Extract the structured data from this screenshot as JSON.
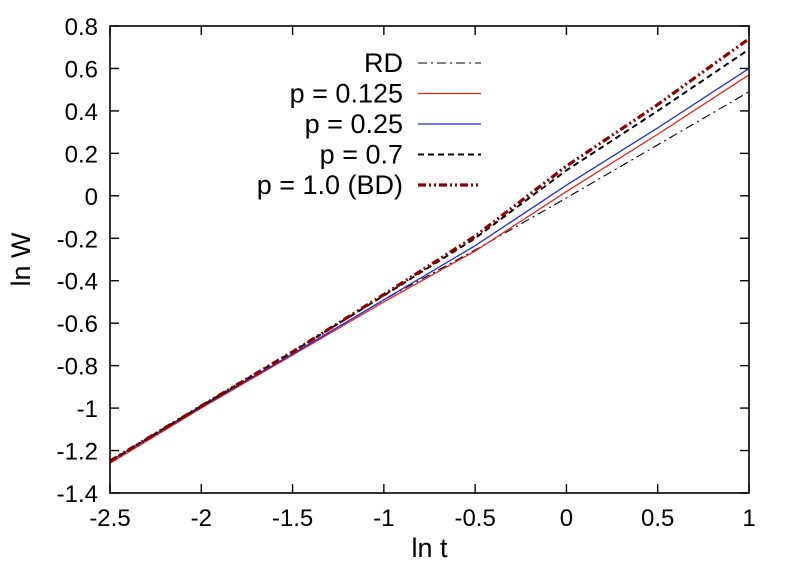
{
  "chart_data": {
    "type": "line",
    "title": "",
    "xlabel": "ln t",
    "ylabel": "ln W",
    "xlim": [
      -2.5,
      1
    ],
    "ylim": [
      -1.4,
      0.8
    ],
    "xticks": [
      -2.5,
      -2,
      -1.5,
      -1,
      -0.5,
      0,
      0.5,
      1
    ],
    "xtick_labels": [
      "-2.5",
      "-2",
      "-1.5",
      "-1",
      "-0.5",
      "0",
      "0.5",
      "1"
    ],
    "yticks": [
      -1.4,
      -1.2,
      -1,
      -0.8,
      -0.6,
      -0.4,
      -0.2,
      0,
      0.2,
      0.4,
      0.6,
      0.8
    ],
    "ytick_labels": [
      "-1.4",
      "-1.2",
      "-1",
      "-0.8",
      "-0.6",
      "-0.4",
      "-0.2",
      "0",
      "0.2",
      "0.4",
      "0.6",
      "0.8"
    ],
    "grid": false,
    "legend_position": "top-left inside plot",
    "series": [
      {
        "name": "RD",
        "color": "#000000",
        "dash": "dash-dot",
        "points": [
          [
            -2.5,
            -1.25
          ],
          [
            -2.0,
            -0.99
          ],
          [
            -1.5,
            -0.745
          ],
          [
            -1.0,
            -0.49
          ],
          [
            -0.5,
            -0.255
          ],
          [
            0.0,
            -0.01
          ],
          [
            0.5,
            0.24
          ],
          [
            1.0,
            0.49
          ]
        ]
      },
      {
        "name": "p = 0.125",
        "color": "#e8241c",
        "dash": "solid",
        "points": [
          [
            -2.5,
            -1.26
          ],
          [
            -2.0,
            -1.0
          ],
          [
            -1.5,
            -0.75
          ],
          [
            -1.0,
            -0.5
          ],
          [
            -0.5,
            -0.26
          ],
          [
            0.0,
            0.02
          ],
          [
            0.5,
            0.29
          ],
          [
            1.0,
            0.57
          ]
        ]
      },
      {
        "name": "p = 0.25",
        "color": "#1f2fd8",
        "dash": "solid",
        "points": [
          [
            -2.5,
            -1.25
          ],
          [
            -2.0,
            -0.995
          ],
          [
            -1.5,
            -0.745
          ],
          [
            -1.0,
            -0.49
          ],
          [
            -0.5,
            -0.235
          ],
          [
            0.0,
            0.05
          ],
          [
            0.5,
            0.32
          ],
          [
            1.0,
            0.6
          ]
        ]
      },
      {
        "name": "p = 0.7",
        "color": "#000000",
        "dash": "dashed",
        "points": [
          [
            -2.5,
            -1.25
          ],
          [
            -2.0,
            -0.99
          ],
          [
            -1.5,
            -0.735
          ],
          [
            -1.0,
            -0.47
          ],
          [
            -0.5,
            -0.2
          ],
          [
            0.0,
            0.12
          ],
          [
            0.5,
            0.4
          ],
          [
            1.0,
            0.69
          ]
        ]
      },
      {
        "name": "p = 1.0 (BD)",
        "color": "#8b0000",
        "dash": "dash-dot-dot",
        "points": [
          [
            -2.5,
            -1.25
          ],
          [
            -2.0,
            -0.99
          ],
          [
            -1.5,
            -0.735
          ],
          [
            -1.0,
            -0.465
          ],
          [
            -0.5,
            -0.19
          ],
          [
            0.0,
            0.14
          ],
          [
            0.5,
            0.43
          ],
          [
            1.0,
            0.74
          ]
        ]
      }
    ]
  }
}
